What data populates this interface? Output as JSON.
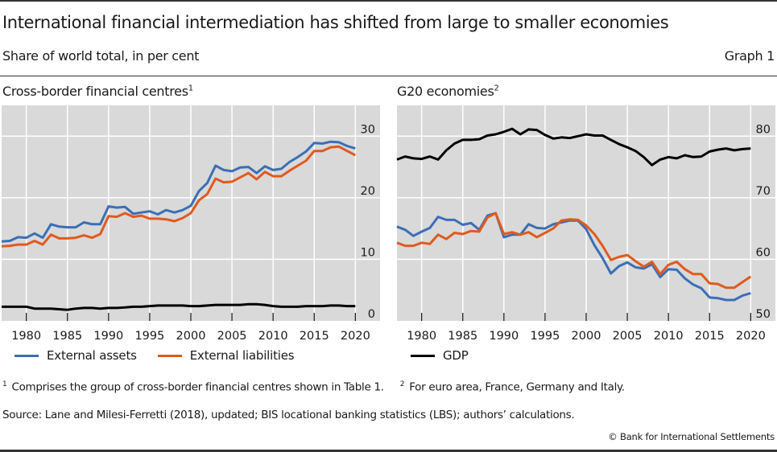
{
  "header": {
    "title": "International financial intermediation has shifted from large to smaller economies",
    "subtitle": "Share of world total, in per cent",
    "graph_number": "Graph 1"
  },
  "panels": [
    {
      "title": "Cross-border financial centres",
      "footnote_marker": "1",
      "legend": [
        {
          "label": "External assets",
          "color": "#3a6fb5"
        },
        {
          "label": "External liabilities",
          "color": "#e05a1d"
        }
      ]
    },
    {
      "title": "G20 economies",
      "footnote_marker": "2",
      "legend": [
        {
          "label": "GDP",
          "color": "#000000"
        }
      ]
    }
  ],
  "footnotes": {
    "note1_marker": "1",
    "note1": "Comprises the group of cross-border financial centres shown in Table 1.",
    "note2_marker": "2",
    "note2": "For euro area, France, Germany and Italy."
  },
  "source": "Source: Lane and Milesi-Ferretti (2018), updated; BIS locational banking statistics (LBS); authors’ calculations.",
  "copyright": "© Bank for International Settlements",
  "colors": {
    "assets": "#3a6fb5",
    "liabilities": "#e05a1d",
    "gdp": "#000000",
    "plot_background": "#d9d9d9",
    "gridline": "#ffffff"
  },
  "chart_data": [
    {
      "type": "line",
      "title": "Cross-border financial centres",
      "xlabel": "",
      "ylabel": "Share of world total, in per cent",
      "xlim": [
        1977,
        2023
      ],
      "ylim": [
        0,
        35
      ],
      "x_ticks": [
        1980,
        1985,
        1990,
        1995,
        2000,
        2005,
        2010,
        2015,
        2020
      ],
      "y_ticks": [
        0,
        10,
        20,
        30
      ],
      "y_axis_side": "right",
      "grid": true,
      "legend_position": "bottom-left",
      "x": [
        1977,
        1978,
        1979,
        1980,
        1981,
        1982,
        1983,
        1984,
        1985,
        1986,
        1987,
        1988,
        1989,
        1990,
        1991,
        1992,
        1993,
        1994,
        1995,
        1996,
        1997,
        1998,
        1999,
        2000,
        2001,
        2002,
        2003,
        2004,
        2005,
        2006,
        2007,
        2008,
        2009,
        2010,
        2011,
        2012,
        2013,
        2014,
        2015,
        2016,
        2017,
        2018,
        2019,
        2020
      ],
      "series": [
        {
          "name": "External assets",
          "color": "#3a6fb5",
          "values": [
            12.9,
            13.0,
            13.6,
            13.5,
            14.2,
            13.5,
            15.7,
            15.3,
            15.2,
            15.2,
            16.0,
            15.7,
            15.7,
            18.6,
            18.4,
            18.5,
            17.4,
            17.6,
            17.8,
            17.3,
            18.0,
            17.6,
            18.0,
            18.7,
            21.1,
            22.4,
            25.2,
            24.5,
            24.3,
            24.9,
            25.0,
            24.0,
            25.1,
            24.5,
            24.7,
            25.8,
            26.6,
            27.5,
            28.9,
            28.8,
            29.1,
            29.0,
            28.4,
            28.0
          ]
        },
        {
          "name": "External liabilities",
          "color": "#e05a1d",
          "values": [
            12.1,
            12.2,
            12.4,
            12.4,
            13.0,
            12.4,
            14.0,
            13.4,
            13.4,
            13.5,
            13.9,
            13.5,
            14.1,
            17.0,
            16.9,
            17.5,
            16.9,
            17.1,
            16.6,
            16.6,
            16.5,
            16.2,
            16.7,
            17.5,
            19.6,
            20.6,
            23.1,
            22.5,
            22.6,
            23.3,
            24.0,
            23.0,
            24.2,
            23.5,
            23.5,
            24.4,
            25.2,
            26.0,
            27.6,
            27.6,
            28.2,
            28.3,
            27.6,
            26.9
          ]
        },
        {
          "name": "GDP",
          "color": "#000000",
          "values": [
            2.3,
            2.3,
            2.3,
            2.3,
            2.0,
            2.0,
            2.0,
            1.9,
            1.8,
            2.0,
            2.1,
            2.1,
            2.0,
            2.1,
            2.1,
            2.2,
            2.3,
            2.3,
            2.4,
            2.5,
            2.5,
            2.5,
            2.5,
            2.4,
            2.4,
            2.5,
            2.6,
            2.6,
            2.6,
            2.6,
            2.7,
            2.7,
            2.6,
            2.4,
            2.3,
            2.3,
            2.3,
            2.4,
            2.4,
            2.4,
            2.5,
            2.5,
            2.4,
            2.4
          ]
        }
      ]
    },
    {
      "type": "line",
      "title": "G20 economies",
      "xlabel": "",
      "ylabel": "Share of world total, in per cent",
      "xlim": [
        1977,
        2023
      ],
      "ylim": [
        50,
        85
      ],
      "x_ticks": [
        1980,
        1985,
        1990,
        1995,
        2000,
        2005,
        2010,
        2015,
        2020
      ],
      "y_ticks": [
        50,
        60,
        70,
        80
      ],
      "y_axis_side": "right",
      "grid": true,
      "legend_position": "bottom-left",
      "x": [
        1977,
        1978,
        1979,
        1980,
        1981,
        1982,
        1983,
        1984,
        1985,
        1986,
        1987,
        1988,
        1989,
        1990,
        1991,
        1992,
        1993,
        1994,
        1995,
        1996,
        1997,
        1998,
        1999,
        2000,
        2001,
        2002,
        2003,
        2004,
        2005,
        2006,
        2007,
        2008,
        2009,
        2010,
        2011,
        2012,
        2013,
        2014,
        2015,
        2016,
        2017,
        2018,
        2019,
        2020
      ],
      "series": [
        {
          "name": "GDP",
          "color": "#000000",
          "values": [
            76.2,
            76.7,
            76.4,
            76.3,
            76.7,
            76.2,
            77.7,
            78.8,
            79.4,
            79.4,
            79.5,
            80.1,
            80.3,
            80.7,
            81.2,
            80.3,
            81.1,
            81.0,
            80.2,
            79.6,
            79.8,
            79.7,
            80.0,
            80.3,
            80.1,
            80.1,
            79.4,
            78.7,
            78.2,
            77.6,
            76.6,
            75.3,
            76.2,
            76.6,
            76.4,
            76.9,
            76.6,
            76.7,
            77.5,
            77.8,
            78.0,
            77.7,
            77.9,
            78.0
          ]
        },
        {
          "name": "External assets",
          "color": "#3a6fb5",
          "values": [
            65.3,
            64.8,
            63.8,
            64.5,
            65.1,
            66.9,
            66.4,
            66.4,
            65.6,
            65.9,
            64.8,
            67.1,
            67.5,
            63.6,
            64.0,
            64.0,
            65.7,
            65.1,
            65.0,
            65.7,
            66.0,
            66.3,
            66.3,
            64.9,
            62.3,
            60.2,
            57.7,
            58.9,
            59.5,
            58.7,
            58.5,
            59.2,
            57.1,
            58.4,
            58.3,
            56.9,
            55.9,
            55.3,
            53.8,
            53.7,
            53.4,
            53.4,
            54.1,
            54.5
          ]
        },
        {
          "name": "External liabilities",
          "color": "#e05a1d",
          "values": [
            62.7,
            62.2,
            62.2,
            62.7,
            62.5,
            64.0,
            63.3,
            64.3,
            64.1,
            64.6,
            64.5,
            66.8,
            67.5,
            64.1,
            64.4,
            64.0,
            64.4,
            63.6,
            64.3,
            65.0,
            66.3,
            66.5,
            66.4,
            65.5,
            64.1,
            62.2,
            59.9,
            60.4,
            60.7,
            59.7,
            58.8,
            59.6,
            57.6,
            59.1,
            59.6,
            58.4,
            57.6,
            57.6,
            56.1,
            56.0,
            55.4,
            55.4,
            56.3,
            57.2
          ]
        }
      ]
    }
  ]
}
